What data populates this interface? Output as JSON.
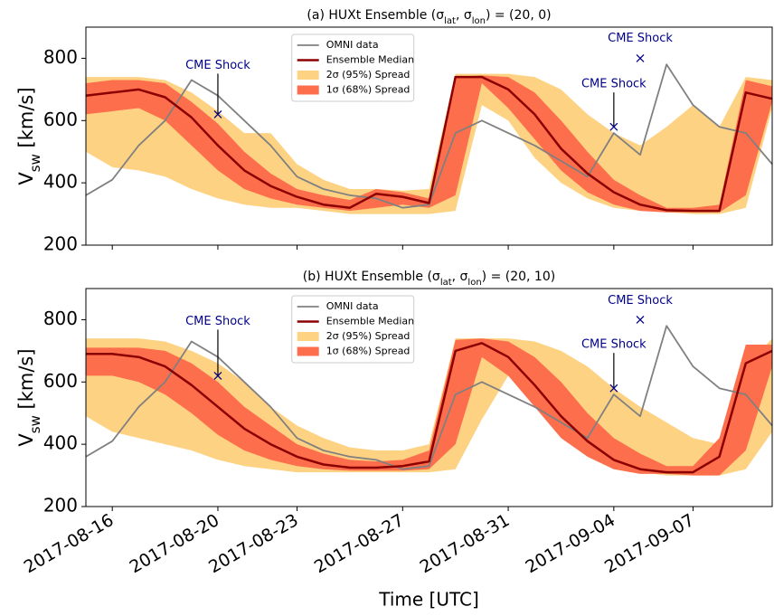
{
  "chart_data": [
    {
      "type": "line",
      "title": [
        "(a) HUXt Ensemble (σ",
        "lat",
        ",  σ",
        "lon",
        ") = (20, 0)"
      ],
      "ylabel": [
        "V",
        "sw",
        " [km/s]"
      ],
      "ylim": [
        200,
        900
      ],
      "yticks": [
        200,
        400,
        600,
        800
      ],
      "xlim": [
        "2017-08-15",
        "2017-09-10"
      ],
      "xticks": [
        "2017-08-16",
        "2017-08-20",
        "2017-08-23",
        "2017-08-27",
        "2017-08-31",
        "2017-09-04",
        "2017-09-07"
      ],
      "xtick_labels": false,
      "legend": "upper center",
      "x": [
        "2017-08-15",
        "2017-08-16",
        "2017-08-17",
        "2017-08-18",
        "2017-08-19",
        "2017-08-20",
        "2017-08-21",
        "2017-08-22",
        "2017-08-23",
        "2017-08-24",
        "2017-08-25",
        "2017-08-26",
        "2017-08-27",
        "2017-08-28",
        "2017-08-29",
        "2017-08-30",
        "2017-08-31",
        "2017-09-01",
        "2017-09-02",
        "2017-09-03",
        "2017-09-04",
        "2017-09-05",
        "2017-09-06",
        "2017-09-07",
        "2017-09-08",
        "2017-09-09",
        "2017-09-10"
      ],
      "series": [
        {
          "name": "OMNI data",
          "kind": "line",
          "color": "#808080",
          "values": [
            360,
            410,
            520,
            600,
            730,
            680,
            600,
            520,
            420,
            380,
            360,
            350,
            320,
            330,
            560,
            600,
            560,
            520,
            470,
            420,
            560,
            490,
            780,
            650,
            580,
            560,
            460
          ]
        },
        {
          "name": "Ensemble Median",
          "kind": "line",
          "color": "#8b0000",
          "values": [
            680,
            690,
            700,
            675,
            610,
            520,
            440,
            390,
            355,
            330,
            320,
            365,
            355,
            335,
            740,
            740,
            700,
            620,
            510,
            430,
            370,
            330,
            312,
            310,
            310,
            690,
            670
          ]
        },
        {
          "name": "2σ (95%) Spread",
          "kind": "band",
          "color": "#fed283",
          "lower": [
            500,
            450,
            440,
            420,
            380,
            350,
            330,
            320,
            320,
            310,
            300,
            300,
            300,
            300,
            310,
            650,
            600,
            480,
            400,
            350,
            320,
            310,
            305,
            300,
            300,
            320,
            640
          ],
          "upper": [
            740,
            740,
            740,
            730,
            690,
            630,
            560,
            560,
            460,
            410,
            380,
            380,
            375,
            380,
            750,
            750,
            750,
            740,
            700,
            620,
            560,
            520,
            580,
            650,
            580,
            740,
            730
          ]
        },
        {
          "name": "1σ (68%) Spread",
          "kind": "band",
          "color": "#fd6e4c",
          "lower": [
            620,
            630,
            640,
            600,
            520,
            440,
            380,
            350,
            330,
            320,
            310,
            320,
            330,
            320,
            360,
            720,
            640,
            540,
            440,
            370,
            330,
            310,
            305,
            305,
            305,
            360,
            660
          ],
          "upper": [
            720,
            730,
            730,
            720,
            660,
            590,
            500,
            430,
            380,
            360,
            345,
            380,
            370,
            350,
            740,
            745,
            740,
            690,
            600,
            500,
            410,
            360,
            320,
            320,
            330,
            730,
            710
          ]
        }
      ],
      "annotations": [
        {
          "text": "CME Shock",
          "x": "2017-08-20",
          "y": 620
        },
        {
          "text": "CME Shock",
          "x": "2017-09-05",
          "y": 800
        },
        {
          "text": "CME Shock",
          "x": "2017-09-04",
          "y": 580
        }
      ]
    },
    {
      "type": "line",
      "title": [
        "(b) HUXt Ensemble (σ",
        "lat",
        ",  σ",
        "lon",
        ") = (20, 10)"
      ],
      "ylabel": [
        "V",
        "sw",
        " [km/s]"
      ],
      "xlabel": "Time [UTC]",
      "ylim": [
        200,
        900
      ],
      "yticks": [
        200,
        400,
        600,
        800
      ],
      "xlim": [
        "2017-08-15",
        "2017-09-10"
      ],
      "xticks": [
        "2017-08-16",
        "2017-08-20",
        "2017-08-23",
        "2017-08-27",
        "2017-08-31",
        "2017-09-04",
        "2017-09-07"
      ],
      "xtick_labels": true,
      "legend": "upper center",
      "x": [
        "2017-08-15",
        "2017-08-16",
        "2017-08-17",
        "2017-08-18",
        "2017-08-19",
        "2017-08-20",
        "2017-08-21",
        "2017-08-22",
        "2017-08-23",
        "2017-08-24",
        "2017-08-25",
        "2017-08-26",
        "2017-08-27",
        "2017-08-28",
        "2017-08-29",
        "2017-08-30",
        "2017-08-31",
        "2017-09-01",
        "2017-09-02",
        "2017-09-03",
        "2017-09-04",
        "2017-09-05",
        "2017-09-06",
        "2017-09-07",
        "2017-09-08",
        "2017-09-09",
        "2017-09-10"
      ],
      "series": [
        {
          "name": "OMNI data",
          "kind": "line",
          "color": "#808080",
          "values": [
            360,
            410,
            520,
            600,
            730,
            680,
            600,
            520,
            420,
            380,
            360,
            350,
            320,
            330,
            560,
            600,
            560,
            520,
            470,
            420,
            560,
            490,
            780,
            650,
            580,
            560,
            460
          ]
        },
        {
          "name": "Ensemble Median",
          "kind": "line",
          "color": "#8b0000",
          "values": [
            690,
            690,
            680,
            650,
            590,
            520,
            450,
            400,
            360,
            335,
            325,
            325,
            330,
            345,
            700,
            725,
            680,
            590,
            490,
            410,
            350,
            320,
            310,
            310,
            360,
            660,
            700
          ]
        },
        {
          "name": "2σ (95%) Spread",
          "kind": "band",
          "color": "#fed283",
          "lower": [
            490,
            440,
            420,
            400,
            380,
            350,
            330,
            320,
            310,
            310,
            310,
            310,
            310,
            310,
            320,
            480,
            620,
            560,
            460,
            380,
            340,
            310,
            300,
            300,
            300,
            320,
            440
          ],
          "upper": [
            740,
            740,
            740,
            730,
            700,
            660,
            600,
            520,
            460,
            420,
            390,
            380,
            380,
            400,
            740,
            740,
            740,
            730,
            700,
            650,
            580,
            520,
            470,
            420,
            400,
            650,
            740
          ]
        },
        {
          "name": "1σ (68%) Spread",
          "kind": "band",
          "color": "#fd6e4c",
          "lower": [
            620,
            620,
            600,
            560,
            500,
            430,
            380,
            350,
            330,
            320,
            315,
            315,
            315,
            320,
            400,
            680,
            620,
            520,
            420,
            360,
            320,
            305,
            305,
            300,
            300,
            380,
            650
          ],
          "upper": [
            710,
            710,
            710,
            700,
            660,
            600,
            520,
            460,
            400,
            370,
            350,
            345,
            350,
            380,
            735,
            740,
            730,
            680,
            600,
            500,
            420,
            370,
            330,
            330,
            420,
            720,
            720
          ]
        }
      ],
      "annotations": [
        {
          "text": "CME Shock",
          "x": "2017-08-20",
          "y": 620
        },
        {
          "text": "CME Shock",
          "x": "2017-09-05",
          "y": 800
        },
        {
          "text": "CME Shock",
          "x": "2017-09-04",
          "y": 580
        }
      ]
    }
  ]
}
